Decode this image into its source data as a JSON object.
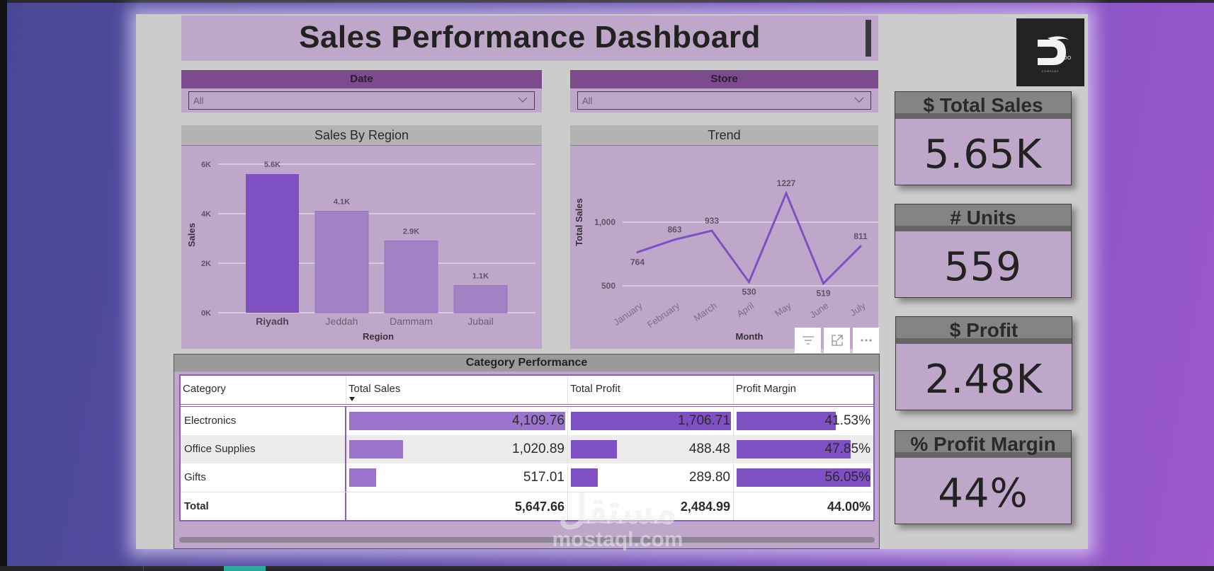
{
  "header": {
    "title": "Sales Performance Dashboard"
  },
  "logo": {
    "letter": "D",
    "suffix": "EDO",
    "tagline": "COMPANY"
  },
  "slicers": [
    {
      "label": "Date",
      "value": "All"
    },
    {
      "label": "Store",
      "value": "All"
    }
  ],
  "sales_by_region": {
    "title": "Sales By Region",
    "xlabel": "Region",
    "ylabel": "Sales",
    "ticks": [
      "0K",
      "2K",
      "4K",
      "6K"
    ],
    "categories": [
      "Riyadh",
      "Jeddah",
      "Dammam",
      "Jubail"
    ],
    "data_labels": [
      "5.6K",
      "4.1K",
      "2.9K",
      "1.1K"
    ]
  },
  "trend": {
    "title": "Trend",
    "xlabel": "Month",
    "ylabel": "Total Sales",
    "ticks": [
      "500",
      "1,000"
    ],
    "categories": [
      "January",
      "February",
      "March",
      "April",
      "May",
      "June",
      "July"
    ],
    "data_labels": [
      "764",
      "863",
      "933",
      "530",
      "1227",
      "519",
      "811"
    ]
  },
  "visual_header_icons": [
    "filter-icon",
    "focus-mode-icon",
    "more-options-icon"
  ],
  "category_performance": {
    "title": "Category Performance",
    "columns": [
      "Category",
      "Total Sales",
      "Total Profit",
      "Profit Margin"
    ],
    "sorted_column": "Total Sales",
    "rows": [
      {
        "category": "Electronics",
        "sales": "4,109.76",
        "profit": "1,706.71",
        "margin": "41.53%"
      },
      {
        "category": "Office Supplies",
        "sales": "1,020.89",
        "profit": "488.48",
        "margin": "47.85%"
      },
      {
        "category": "Gifts",
        "sales": "517.01",
        "profit": "289.80",
        "margin": "56.05%"
      }
    ],
    "total": {
      "label": "Total",
      "sales": "5,647.66",
      "profit": "2,484.99",
      "margin": "44.00%"
    }
  },
  "kpis": [
    {
      "label": "$ Total Sales",
      "value": "5.65K"
    },
    {
      "label": "# Units",
      "value": "559"
    },
    {
      "label": "$ Profit",
      "value": "2.48K"
    },
    {
      "label": "% Profit Margin",
      "value": "44%"
    }
  ],
  "watermark": {
    "arabic": "مستقل",
    "latin": "mostaql.com"
  },
  "colors": {
    "accent": "#7f4fc4",
    "accent_light": "#9b74cc",
    "panel": "#bea7c9",
    "slicer_header": "#7b4b8c",
    "kpi_header": "#848484"
  },
  "chart_data": [
    {
      "type": "bar",
      "title": "Sales By Region",
      "categories": [
        "Riyadh",
        "Jeddah",
        "Dammam",
        "Jubail"
      ],
      "values": [
        5600,
        4100,
        2900,
        1100
      ],
      "xlabel": "Region",
      "ylabel": "Sales",
      "ylim": [
        0,
        6000
      ],
      "yticks": [
        0,
        2000,
        4000,
        6000
      ],
      "grid": true,
      "highlighted": "Riyadh"
    },
    {
      "type": "line",
      "title": "Trend",
      "categories": [
        "January",
        "February",
        "March",
        "April",
        "May",
        "June",
        "July"
      ],
      "values": [
        764,
        863,
        933,
        530,
        1227,
        519,
        811
      ],
      "xlabel": "Month",
      "ylabel": "Total Sales",
      "yticks": [
        500,
        1000
      ],
      "grid": true
    }
  ]
}
